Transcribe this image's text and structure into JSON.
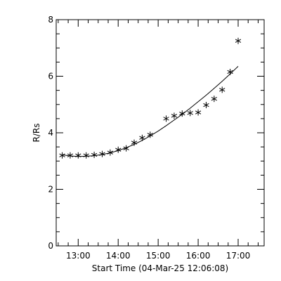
{
  "chart_data": {
    "type": "scatter",
    "title": "",
    "xlabel": "Start Time (04-Mar-25 12:06:08)",
    "ylabel": "R/Rs",
    "x_unit": "time of day (hours)",
    "xlim": [
      12.45,
      17.65
    ],
    "ylim": [
      0,
      8
    ],
    "x_ticks": [
      13,
      14,
      15,
      16,
      17
    ],
    "x_tick_labels": [
      "13:00",
      "14:00",
      "15:00",
      "16:00",
      "17:00"
    ],
    "x_minor_step": 0.25,
    "y_ticks": [
      0,
      2,
      4,
      6,
      8
    ],
    "y_tick_labels": [
      "0",
      "2",
      "4",
      "6",
      "8"
    ],
    "y_minor_step": 0.5,
    "grid": false,
    "marker": "asterisk",
    "series": [
      {
        "type": "scatter",
        "x": [
          12.6,
          12.8,
          13.0,
          13.2,
          13.4,
          13.6,
          13.8,
          14.0,
          14.2,
          14.4,
          14.6,
          14.8,
          15.2,
          15.4,
          15.6,
          15.8,
          16.0,
          16.2,
          16.4,
          16.6,
          16.8,
          17.0
        ],
        "y": [
          3.2,
          3.2,
          3.2,
          3.2,
          3.22,
          3.25,
          3.3,
          3.4,
          3.45,
          3.65,
          3.82,
          3.93,
          4.5,
          4.6,
          4.68,
          4.7,
          4.72,
          4.98,
          5.2,
          5.52,
          6.15,
          7.25
        ]
      },
      {
        "type": "line",
        "x": [
          12.6,
          12.8,
          13.0,
          13.2,
          13.4,
          13.6,
          13.8,
          14.0,
          14.2,
          14.4,
          14.6,
          14.8,
          15.0,
          15.2,
          15.4,
          15.6,
          15.8,
          16.0,
          16.2,
          16.4,
          16.6,
          16.8,
          17.0
        ],
        "y": [
          3.22,
          3.18,
          3.16,
          3.17,
          3.19,
          3.23,
          3.29,
          3.37,
          3.47,
          3.59,
          3.73,
          3.89,
          4.06,
          4.25,
          4.45,
          4.65,
          4.87,
          5.1,
          5.33,
          5.57,
          5.82,
          6.08,
          6.35
        ]
      }
    ]
  }
}
